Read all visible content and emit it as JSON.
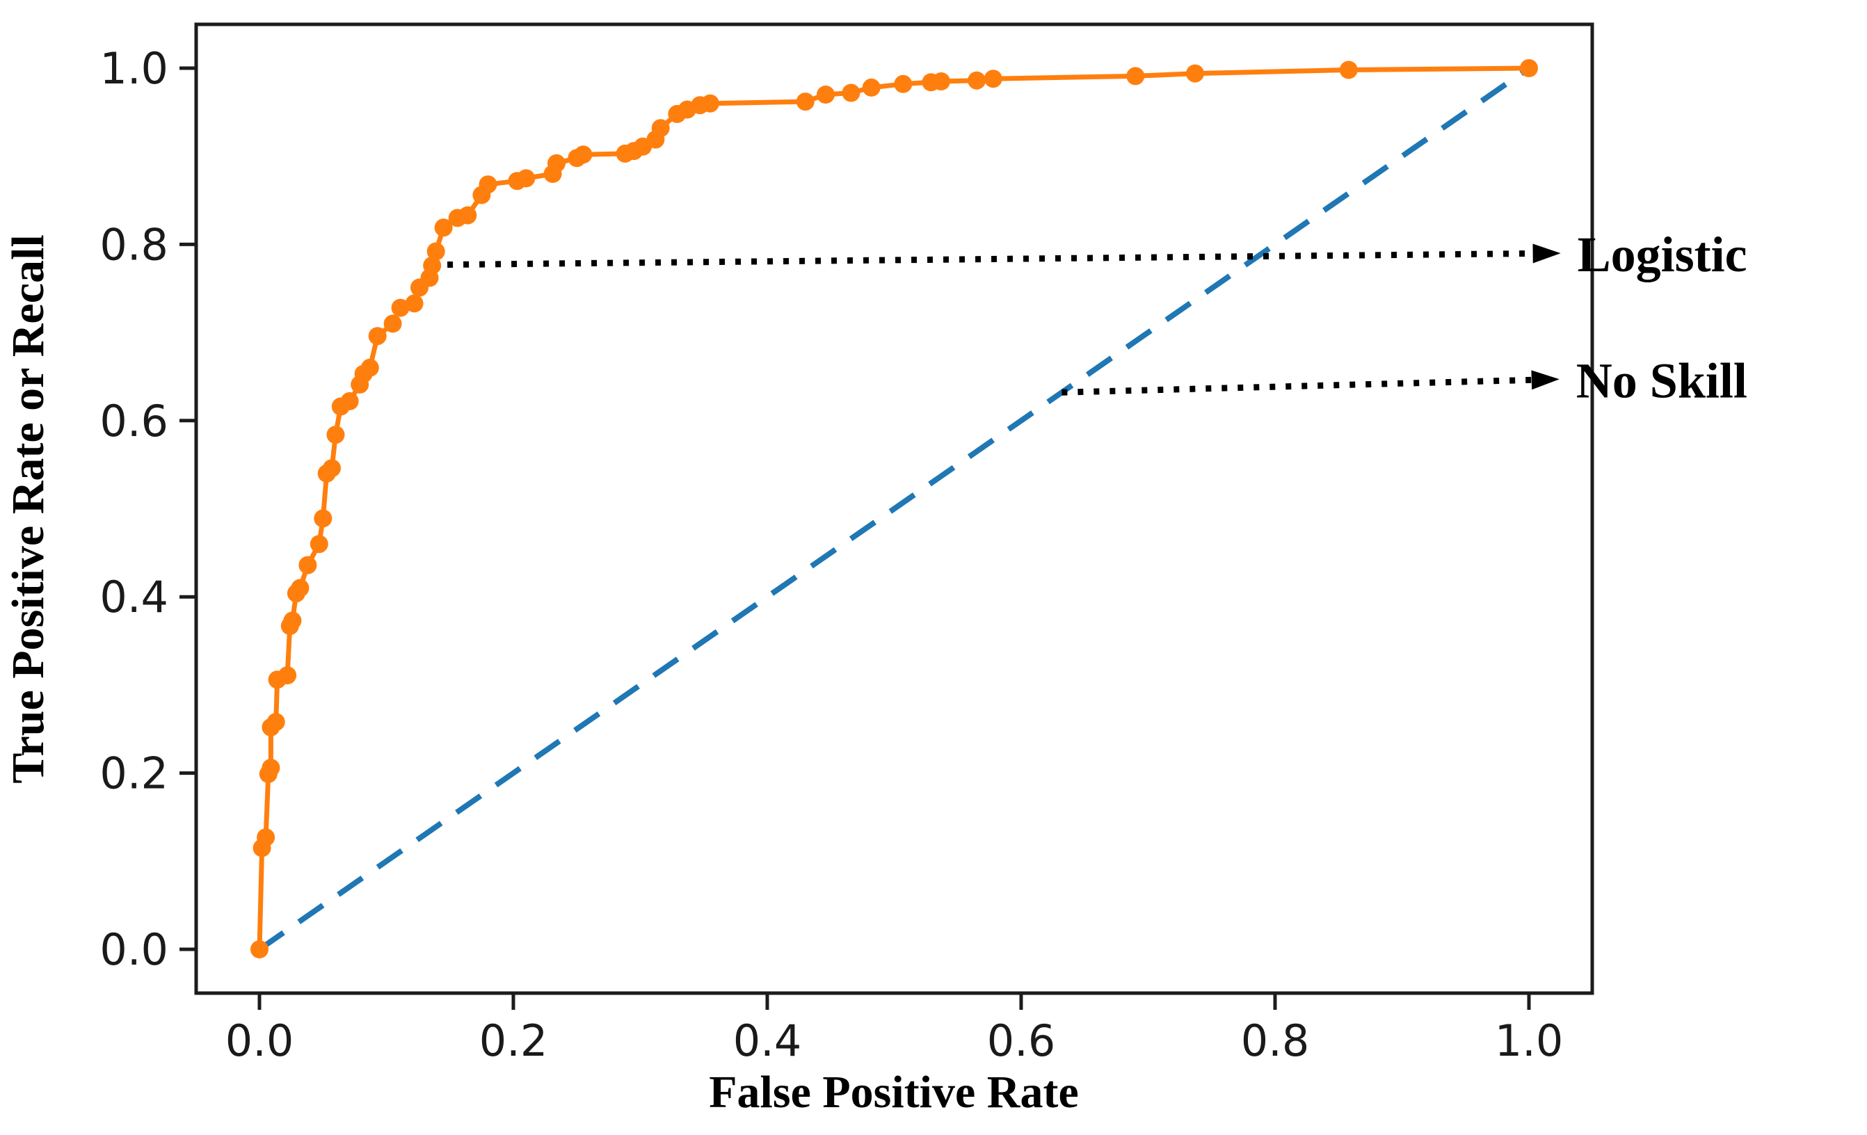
{
  "chart_data": {
    "type": "line",
    "title": "",
    "xlabel": "False Positive Rate",
    "ylabel": "True Positive Rate or Recall",
    "xlim": [
      -0.05,
      1.045
    ],
    "ylim": [
      -0.05,
      1.047
    ],
    "grid": false,
    "legend_position": "none (labels drawn as dotted-arrow annotations)",
    "x_ticks": [
      "0.0",
      "0.2",
      "0.4",
      "0.6",
      "0.8",
      "1.0"
    ],
    "y_ticks": [
      "0.0",
      "0.2",
      "0.4",
      "0.6",
      "0.8",
      "1.0"
    ],
    "colors": {
      "logistic_curve": "#ff7f0e",
      "no_skill_line": "#1f77b4",
      "annotation": "#000000",
      "spine": "#1c1c1c",
      "background": "#ffffff"
    },
    "series": [
      {
        "name": "Logistic",
        "style": "solid line with dot markers",
        "color": "#ff7f0e",
        "points": [
          [
            0.0,
            0.0
          ],
          [
            0.002,
            0.115
          ],
          [
            0.005,
            0.127
          ],
          [
            0.007,
            0.199
          ],
          [
            0.009,
            0.206
          ],
          [
            0.009,
            0.252
          ],
          [
            0.013,
            0.258
          ],
          [
            0.014,
            0.306
          ],
          [
            0.022,
            0.311
          ],
          [
            0.024,
            0.367
          ],
          [
            0.026,
            0.373
          ],
          [
            0.029,
            0.404
          ],
          [
            0.032,
            0.41
          ],
          [
            0.038,
            0.436
          ],
          [
            0.047,
            0.46
          ],
          [
            0.05,
            0.489
          ],
          [
            0.053,
            0.54
          ],
          [
            0.057,
            0.546
          ],
          [
            0.06,
            0.584
          ],
          [
            0.064,
            0.616
          ],
          [
            0.071,
            0.622
          ],
          [
            0.079,
            0.641
          ],
          [
            0.082,
            0.653
          ],
          [
            0.087,
            0.66
          ],
          [
            0.093,
            0.696
          ],
          [
            0.105,
            0.71
          ],
          [
            0.111,
            0.728
          ],
          [
            0.122,
            0.733
          ],
          [
            0.126,
            0.751
          ],
          [
            0.134,
            0.762
          ],
          [
            0.136,
            0.776
          ],
          [
            0.139,
            0.792
          ],
          [
            0.145,
            0.819
          ],
          [
            0.156,
            0.83
          ],
          [
            0.164,
            0.833
          ],
          [
            0.175,
            0.856
          ],
          [
            0.18,
            0.868
          ],
          [
            0.203,
            0.872
          ],
          [
            0.21,
            0.875
          ],
          [
            0.231,
            0.88
          ],
          [
            0.234,
            0.892
          ],
          [
            0.25,
            0.898
          ],
          [
            0.255,
            0.902
          ],
          [
            0.288,
            0.903
          ],
          [
            0.295,
            0.906
          ],
          [
            0.302,
            0.911
          ],
          [
            0.312,
            0.919
          ],
          [
            0.316,
            0.932
          ],
          [
            0.329,
            0.948
          ],
          [
            0.337,
            0.953
          ],
          [
            0.347,
            0.958
          ],
          [
            0.355,
            0.96
          ],
          [
            0.43,
            0.962
          ],
          [
            0.446,
            0.97
          ],
          [
            0.466,
            0.972
          ],
          [
            0.482,
            0.978
          ],
          [
            0.507,
            0.982
          ],
          [
            0.529,
            0.984
          ],
          [
            0.537,
            0.985
          ],
          [
            0.565,
            0.986
          ],
          [
            0.578,
            0.988
          ],
          [
            0.69,
            0.991
          ],
          [
            0.737,
            0.994
          ],
          [
            0.858,
            0.998
          ],
          [
            1.0,
            1.0
          ]
        ]
      },
      {
        "name": "No Skill",
        "style": "dashed line, no markers",
        "color": "#1f77b4",
        "points": [
          [
            0.0,
            0.0
          ],
          [
            1.0,
            1.0
          ]
        ]
      }
    ],
    "annotations": [
      {
        "label": "Logistic",
        "arrow_style": "black dotted line with right-pointing arrowhead",
        "tail_xy": [
          0.148,
          0.777
        ],
        "tip_xy": [
          1.025,
          0.79
        ]
      },
      {
        "label": "No Skill",
        "arrow_style": "black dotted line with right-pointing arrowhead",
        "tail_xy": [
          0.632,
          0.632
        ],
        "tip_xy": [
          1.024,
          0.647
        ]
      }
    ]
  }
}
